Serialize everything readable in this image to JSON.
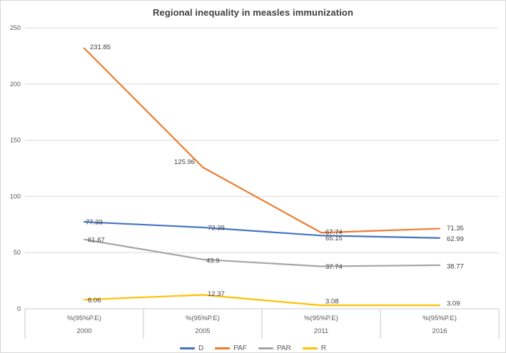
{
  "title": "Regional inequality in measles immunization",
  "chart_data": {
    "type": "line",
    "x_group_label": "%(95%P.E)",
    "categories": [
      "2000",
      "2005",
      "2011",
      "2016"
    ],
    "ylim": [
      0,
      250
    ],
    "yticks": [
      0,
      50,
      100,
      150,
      200,
      250
    ],
    "grid": true,
    "legend_position": "bottom",
    "series": [
      {
        "name": "D",
        "color": "#4472C4",
        "values": [
          77.33,
          72.39,
          65.15,
          62.99
        ],
        "labels": [
          "77.33",
          "72.39",
          "65.15",
          "62.99"
        ]
      },
      {
        "name": "PAF",
        "color": "#ED7D31",
        "values": [
          231.85,
          125.96,
          67.74,
          71.35
        ],
        "labels": [
          "231.85",
          "125.96",
          "67.74",
          "71.35"
        ]
      },
      {
        "name": "PAR",
        "color": "#A5A5A5",
        "values": [
          61.67,
          43.9,
          37.74,
          38.77
        ],
        "labels": [
          "61.67",
          "43.9",
          "37.74",
          "38.77"
        ]
      },
      {
        "name": "R",
        "color": "#FFC000",
        "values": [
          8.06,
          12.37,
          3.08,
          3.09
        ],
        "labels": [
          "8.06",
          "12.37",
          "3.08",
          "3.09"
        ]
      }
    ]
  },
  "colors": {
    "gridline": "#d9d9d9",
    "axis_line": "#c9c9c9",
    "tick_text": "#595959",
    "data_label_text": "#404040",
    "title_text": "#404040",
    "frame_border": "#d6d6d6"
  }
}
